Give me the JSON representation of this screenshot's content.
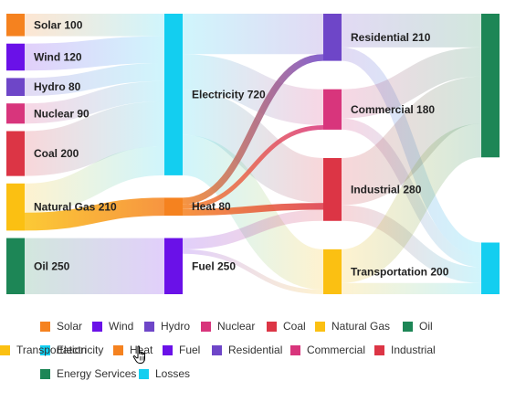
{
  "chart_data": {
    "type": "sankey",
    "title": "",
    "nodes": [
      {
        "id": "Solar",
        "label": "Solar 100",
        "value": 100,
        "color": "#F5821F",
        "column": 0
      },
      {
        "id": "Wind",
        "label": "Wind 120",
        "value": 120,
        "color": "#6A11E8",
        "column": 0
      },
      {
        "id": "Hydro",
        "label": "Hydro 80",
        "value": 80,
        "color": "#6E46C8",
        "column": 0
      },
      {
        "id": "Nuclear",
        "label": "Nuclear 90",
        "value": 90,
        "color": "#D8357C",
        "column": 0
      },
      {
        "id": "Coal",
        "label": "Coal 200",
        "value": 200,
        "color": "#DC3545",
        "column": 0
      },
      {
        "id": "Natural Gas",
        "label": "Natural Gas 210",
        "value": 210,
        "color": "#FBC012",
        "column": 0
      },
      {
        "id": "Oil",
        "label": "Oil 250",
        "value": 250,
        "color": "#1D8656",
        "column": 0
      },
      {
        "id": "Electricity",
        "label": "Electricity 720",
        "value": 720,
        "color": "#13CEF0",
        "column": 1
      },
      {
        "id": "Heat",
        "label": "Heat 80",
        "value": 80,
        "color": "#F5821F",
        "column": 1
      },
      {
        "id": "Fuel",
        "label": "Fuel 250",
        "value": 250,
        "color": "#6A11E8",
        "column": 1
      },
      {
        "id": "Residential",
        "label": "Residential 210",
        "value": 210,
        "color": "#6E46C8",
        "column": 2
      },
      {
        "id": "Commercial",
        "label": "Commercial 180",
        "value": 180,
        "color": "#D8357C",
        "column": 2
      },
      {
        "id": "Industrial",
        "label": "Industrial 280",
        "value": 280,
        "color": "#DC3545",
        "column": 2
      },
      {
        "id": "Transportation",
        "label": "Transportation 200",
        "value": 200,
        "color": "#FBC012",
        "column": 2
      },
      {
        "id": "Energy Services",
        "label": "",
        "value": 640,
        "color": "#1D8656",
        "column": 3
      },
      {
        "id": "Losses",
        "label": "",
        "value": 230,
        "color": "#13CEF0",
        "column": 3
      }
    ],
    "links": [
      {
        "source": "Solar",
        "target": "Electricity",
        "value": 100
      },
      {
        "source": "Wind",
        "target": "Electricity",
        "value": 120
      },
      {
        "source": "Hydro",
        "target": "Electricity",
        "value": 80
      },
      {
        "source": "Nuclear",
        "target": "Electricity",
        "value": 90
      },
      {
        "source": "Coal",
        "target": "Electricity",
        "value": 200
      },
      {
        "source": "Natural Gas",
        "target": "Electricity",
        "value": 130
      },
      {
        "source": "Natural Gas",
        "target": "Heat",
        "value": 80
      },
      {
        "source": "Oil",
        "target": "Fuel",
        "value": 250
      },
      {
        "source": "Electricity",
        "target": "Residential",
        "value": 180
      },
      {
        "source": "Electricity",
        "target": "Commercial",
        "value": 160
      },
      {
        "source": "Electricity",
        "target": "Industrial",
        "value": 200
      },
      {
        "source": "Electricity",
        "target": "Transportation",
        "value": 180
      },
      {
        "source": "Heat",
        "target": "Residential",
        "value": 30
      },
      {
        "source": "Heat",
        "target": "Commercial",
        "value": 20
      },
      {
        "source": "Heat",
        "target": "Industrial",
        "value": 30
      },
      {
        "source": "Fuel",
        "target": "Industrial",
        "value": 50
      },
      {
        "source": "Fuel",
        "target": "Transportation",
        "value": 20
      },
      {
        "source": "Residential",
        "target": "Energy Services",
        "value": 150
      },
      {
        "source": "Residential",
        "target": "Losses",
        "value": 60
      },
      {
        "source": "Commercial",
        "target": "Energy Services",
        "value": 130
      },
      {
        "source": "Commercial",
        "target": "Losses",
        "value": 50
      },
      {
        "source": "Industrial",
        "target": "Energy Services",
        "value": 210
      },
      {
        "source": "Industrial",
        "target": "Losses",
        "value": 70
      },
      {
        "source": "Transportation",
        "target": "Energy Services",
        "value": 150
      },
      {
        "source": "Transportation",
        "target": "Losses",
        "value": 50
      }
    ],
    "highlighted_node": "Heat",
    "legend": {
      "placement": "bottom",
      "items": [
        {
          "label": "Solar",
          "color": "#F5821F"
        },
        {
          "label": "Wind",
          "color": "#6A11E8"
        },
        {
          "label": "Hydro",
          "color": "#6E46C8"
        },
        {
          "label": "Nuclear",
          "color": "#D8357C"
        },
        {
          "label": "Coal",
          "color": "#DC3545"
        },
        {
          "label": "Natural Gas",
          "color": "#FBC012"
        },
        {
          "label": "Oil",
          "color": "#1D8656"
        },
        {
          "label": "Electricity",
          "color": "#13CEF0"
        },
        {
          "label": "Heat",
          "color": "#F5821F"
        },
        {
          "label": "Fuel",
          "color": "#6A11E8"
        },
        {
          "label": "Residential",
          "color": "#6E46C8"
        },
        {
          "label": "Commercial",
          "color": "#D8357C"
        },
        {
          "label": "Industrial",
          "color": "#DC3545"
        },
        {
          "label": "Transportation",
          "color": "#FBC012"
        },
        {
          "label": "Energy Services",
          "color": "#1D8656"
        },
        {
          "label": "Losses",
          "color": "#13CEF0"
        }
      ]
    }
  }
}
